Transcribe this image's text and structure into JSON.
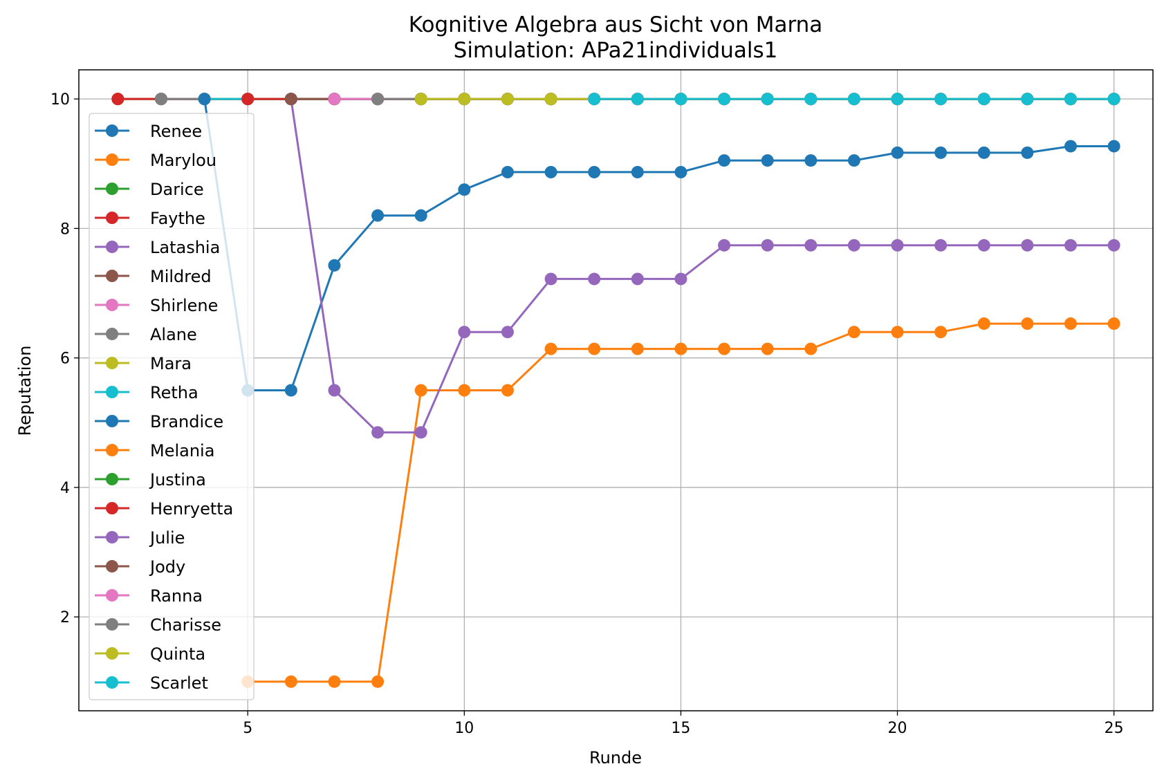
{
  "chart_data": {
    "type": "line",
    "title": "Kognitive Algebra aus Sicht von Marna",
    "subtitle": "Simulation: APa21individuals1",
    "xlabel": "Runde",
    "ylabel": "Reputation",
    "xlim": [
      1.1,
      25.9
    ],
    "ylim": [
      0.55,
      10.45
    ],
    "xticks": [
      5,
      10,
      15,
      20,
      25
    ],
    "yticks": [
      2,
      4,
      6,
      8,
      10
    ],
    "grid": true,
    "legend_position": "left",
    "series": [
      {
        "name": "Renee",
        "color": "#1f77b4",
        "x": [
          2,
          3,
          4,
          5,
          6,
          7,
          8,
          9,
          10,
          11,
          12,
          13,
          14,
          15,
          16,
          17,
          18,
          19,
          20,
          21,
          22,
          23,
          24,
          25
        ],
        "y": [
          10,
          10,
          10,
          10,
          10,
          10,
          10,
          10,
          10,
          10,
          10,
          10,
          10,
          10,
          10,
          10,
          10,
          10,
          10,
          10,
          10,
          10,
          10,
          10
        ]
      },
      {
        "name": "Marylou",
        "color": "#ff7f0e",
        "x": [
          2,
          3,
          4,
          5,
          6,
          7,
          8,
          9,
          10,
          11,
          12,
          13,
          14,
          15,
          16,
          17,
          18,
          19,
          20,
          21,
          22,
          23,
          24,
          25
        ],
        "y": [
          10,
          10,
          10,
          10,
          10,
          10,
          10,
          10,
          10,
          10,
          10,
          10,
          10,
          10,
          10,
          10,
          10,
          10,
          10,
          10,
          10,
          10,
          10,
          10
        ]
      },
      {
        "name": "Darice",
        "color": "#2ca02c",
        "x": [
          2,
          3,
          4,
          5,
          6,
          7,
          8,
          9,
          10,
          11,
          12,
          13,
          14,
          15,
          16,
          17,
          18,
          19,
          20,
          21,
          22,
          23,
          24,
          25
        ],
        "y": [
          10,
          10,
          10,
          10,
          10,
          10,
          10,
          10,
          10,
          10,
          10,
          10,
          10,
          10,
          10,
          10,
          10,
          10,
          10,
          10,
          10,
          10,
          10,
          10
        ]
      },
      {
        "name": "Faythe",
        "color": "#d62728",
        "x": [
          2,
          3,
          4,
          5,
          6,
          7,
          8,
          9,
          10,
          11,
          12,
          13,
          14,
          15,
          16,
          17,
          18,
          19,
          20,
          21,
          22,
          23,
          24,
          25
        ],
        "y": [
          10,
          10,
          10,
          10,
          10,
          10,
          10,
          10,
          10,
          10,
          10,
          10,
          10,
          10,
          10,
          10,
          10,
          10,
          10,
          10,
          10,
          10,
          10,
          10
        ]
      },
      {
        "name": "Latashia",
        "color": "#9467bd",
        "x": [
          3,
          4,
          5,
          6,
          7,
          8,
          9,
          10,
          11,
          12,
          13,
          14,
          15,
          16,
          17,
          18,
          19,
          20,
          21,
          22,
          23,
          24,
          25
        ],
        "y": [
          10,
          10,
          10,
          10,
          10,
          10,
          10,
          10,
          10,
          10,
          10,
          10,
          10,
          10,
          10,
          10,
          10,
          10,
          10,
          10,
          10,
          10,
          10
        ]
      },
      {
        "name": "Mildred",
        "color": "#8c564b",
        "x": [
          3,
          4,
          5,
          6,
          7,
          8,
          9,
          10,
          11,
          12,
          13,
          14,
          15,
          16,
          17,
          18,
          19,
          20,
          21,
          22,
          23,
          24,
          25
        ],
        "y": [
          10,
          10,
          10,
          10,
          10,
          10,
          10,
          10,
          10,
          10,
          10,
          10,
          10,
          10,
          10,
          10,
          10,
          10,
          10,
          10,
          10,
          10,
          10
        ]
      },
      {
        "name": "Shirlene",
        "color": "#e377c2",
        "x": [
          3,
          4,
          5,
          6,
          7,
          8,
          9,
          10,
          11,
          12,
          13,
          14,
          15,
          16,
          17,
          18,
          19,
          20,
          21,
          22,
          23,
          24,
          25
        ],
        "y": [
          10,
          10,
          10,
          10,
          10,
          10,
          10,
          10,
          10,
          10,
          10,
          10,
          10,
          10,
          10,
          10,
          10,
          10,
          10,
          10,
          10,
          10,
          10
        ]
      },
      {
        "name": "Alane",
        "color": "#7f7f7f",
        "x": [
          3,
          4,
          5,
          6,
          7,
          8,
          9,
          10,
          11,
          12,
          13,
          14,
          15,
          16,
          17,
          18,
          19,
          20,
          21,
          22,
          23,
          24,
          25
        ],
        "y": [
          10,
          10,
          10,
          10,
          10,
          10,
          10,
          10,
          10,
          10,
          10,
          10,
          10,
          10,
          10,
          10,
          10,
          10,
          10,
          10,
          10,
          10,
          10
        ]
      },
      {
        "name": "Mara",
        "color": "#bcbd22",
        "x": [
          4,
          5,
          6,
          7,
          8,
          9,
          10,
          11,
          12,
          13,
          14,
          15,
          16,
          17,
          18,
          19,
          20,
          21,
          22,
          23,
          24,
          25
        ],
        "y": [
          10,
          10,
          10,
          10,
          10,
          10,
          10,
          10,
          10,
          10,
          10,
          10,
          10,
          10,
          10,
          10,
          10,
          10,
          10,
          10,
          10,
          10
        ]
      },
      {
        "name": "Retha",
        "color": "#17becf",
        "x": [
          4,
          5,
          6,
          7,
          8,
          9,
          10,
          11,
          12,
          13,
          14,
          15,
          16,
          17,
          18,
          19,
          20,
          21,
          22,
          23,
          24,
          25
        ],
        "y": [
          10,
          10,
          10,
          10,
          10,
          10,
          10,
          10,
          10,
          10,
          10,
          10,
          10,
          10,
          10,
          10,
          10,
          10,
          10,
          10,
          10,
          10
        ]
      },
      {
        "name": "Brandice",
        "color": "#1f77b4",
        "x": [
          4,
          5,
          6,
          7,
          8,
          9,
          10,
          11,
          12,
          13,
          14,
          15,
          16,
          17,
          18,
          19,
          20,
          21,
          22,
          23,
          24,
          25
        ],
        "y": [
          10,
          5.5,
          5.5,
          7.43,
          8.2,
          8.2,
          8.6,
          8.87,
          8.87,
          8.87,
          8.87,
          8.87,
          9.05,
          9.05,
          9.05,
          9.05,
          9.17,
          9.17,
          9.17,
          9.17,
          9.27,
          9.27
        ]
      },
      {
        "name": "Melania",
        "color": "#ff7f0e",
        "x": [
          5,
          6,
          7,
          8,
          9,
          10,
          11,
          12,
          13,
          14,
          15,
          16,
          17,
          18,
          19,
          20,
          21,
          22,
          23,
          24,
          25
        ],
        "y": [
          1,
          1,
          1,
          1,
          5.5,
          5.5,
          5.5,
          6.14,
          6.14,
          6.14,
          6.14,
          6.14,
          6.14,
          6.14,
          6.4,
          6.4,
          6.4,
          6.53,
          6.53,
          6.53,
          6.53
        ]
      },
      {
        "name": "Justina",
        "color": "#2ca02c",
        "x": [
          5,
          6,
          7,
          8,
          9,
          10,
          11,
          12,
          13,
          14,
          15,
          16,
          17,
          18,
          19,
          20,
          21,
          22,
          23,
          24,
          25
        ],
        "y": [
          10,
          10,
          10,
          10,
          10,
          10,
          10,
          10,
          10,
          10,
          10,
          10,
          10,
          10,
          10,
          10,
          10,
          10,
          10,
          10,
          10
        ]
      },
      {
        "name": "Henryetta",
        "color": "#d62728",
        "x": [
          5,
          6,
          7,
          8,
          9,
          10,
          11,
          12,
          13,
          14,
          15,
          16,
          17,
          18,
          19,
          20,
          21,
          22,
          23,
          24,
          25
        ],
        "y": [
          10,
          10,
          10,
          10,
          10,
          10,
          10,
          10,
          10,
          10,
          10,
          10,
          10,
          10,
          10,
          10,
          10,
          10,
          10,
          10,
          10
        ]
      },
      {
        "name": "Julie",
        "color": "#9467bd",
        "x": [
          6,
          7,
          8,
          9,
          10,
          11,
          12,
          13,
          14,
          15,
          16,
          17,
          18,
          19,
          20,
          21,
          22,
          23,
          24,
          25
        ],
        "y": [
          10,
          5.5,
          4.85,
          4.85,
          6.4,
          6.4,
          7.22,
          7.22,
          7.22,
          7.22,
          7.74,
          7.74,
          7.74,
          7.74,
          7.74,
          7.74,
          7.74,
          7.74,
          7.74,
          7.74
        ]
      },
      {
        "name": "Jody",
        "color": "#8c564b",
        "x": [
          6,
          7,
          8,
          9,
          10,
          11,
          12,
          13,
          14,
          15,
          16,
          17,
          18,
          19,
          20,
          21,
          22,
          23,
          24,
          25
        ],
        "y": [
          10,
          10,
          10,
          10,
          10,
          10,
          10,
          10,
          10,
          10,
          10,
          10,
          10,
          10,
          10,
          10,
          10,
          10,
          10,
          10
        ]
      },
      {
        "name": "Ranna",
        "color": "#e377c2",
        "x": [
          7,
          8,
          9,
          10,
          11,
          12,
          13,
          14,
          15,
          16,
          17,
          18,
          19,
          20,
          21,
          22,
          23,
          24,
          25
        ],
        "y": [
          10,
          10,
          10,
          10,
          10,
          10,
          10,
          10,
          10,
          10,
          10,
          10,
          10,
          10,
          10,
          10,
          10,
          10,
          10
        ]
      },
      {
        "name": "Charisse",
        "color": "#7f7f7f",
        "x": [
          8,
          9,
          10,
          11,
          12,
          13,
          14,
          15,
          16,
          17,
          18,
          19,
          20,
          21,
          22,
          23,
          24,
          25
        ],
        "y": [
          10,
          10,
          10,
          10,
          10,
          10,
          10,
          10,
          10,
          10,
          10,
          10,
          10,
          10,
          10,
          10,
          10,
          10
        ]
      },
      {
        "name": "Quinta",
        "color": "#bcbd22",
        "x": [
          9,
          10,
          11,
          12,
          13,
          14,
          15,
          16,
          17,
          18,
          19,
          20,
          21,
          22,
          23,
          24,
          25
        ],
        "y": [
          10,
          10,
          10,
          10,
          10,
          10,
          10,
          10,
          10,
          10,
          10,
          10,
          10,
          10,
          10,
          10,
          10
        ]
      },
      {
        "name": "Scarlet",
        "color": "#17becf",
        "x": [
          13,
          14,
          15,
          16,
          17,
          18,
          19,
          20,
          21,
          22,
          23,
          24,
          25
        ],
        "y": [
          10,
          10,
          10,
          10,
          10,
          10,
          10,
          10,
          10,
          10,
          10,
          10,
          10
        ]
      }
    ]
  }
}
